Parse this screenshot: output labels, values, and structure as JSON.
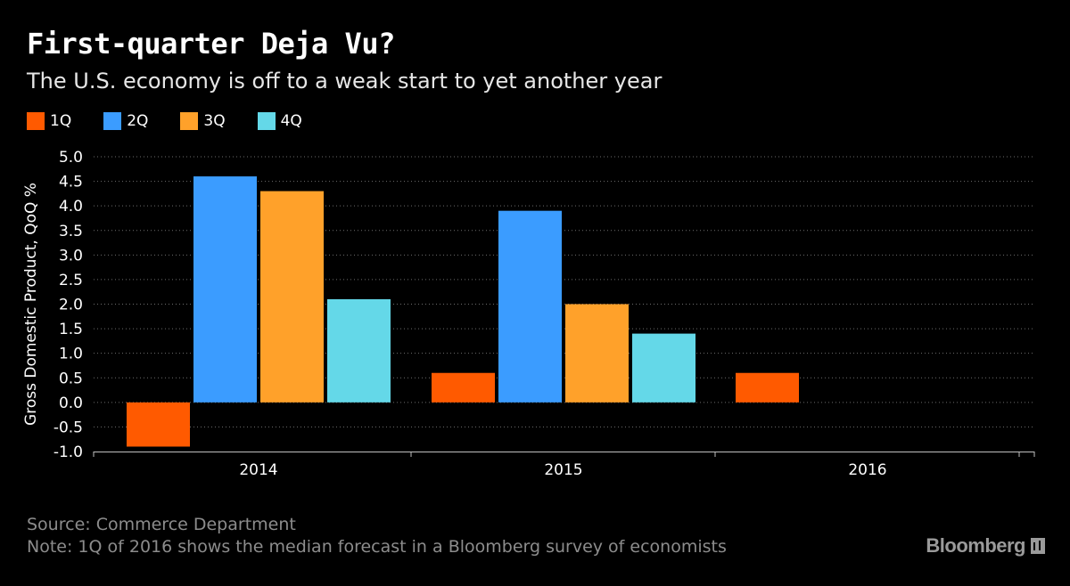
{
  "chart_data": {
    "type": "bar",
    "title": "First-quarter Deja Vu?",
    "subtitle": "The U.S. economy is off to a weak start to yet another year",
    "ylabel": "Gross Domestic Product, QoQ %",
    "xlabel": "",
    "categories": [
      "2014",
      "2015",
      "2016"
    ],
    "ylim": [
      -1.0,
      5.0
    ],
    "yticks": [
      "5.0",
      "4.5",
      "4.0",
      "3.5",
      "3.0",
      "2.5",
      "2.0",
      "1.5",
      "1.0",
      "0.5",
      "0.0",
      "-0.5",
      "-1.0"
    ],
    "grid": true,
    "legend_position": "top-left",
    "series": [
      {
        "name": "1Q",
        "color": "#ff5a00",
        "values": [
          -0.9,
          0.6,
          0.6
        ]
      },
      {
        "name": "2Q",
        "color": "#3b9cff",
        "values": [
          4.6,
          3.9,
          null
        ]
      },
      {
        "name": "3Q",
        "color": "#ffa12a",
        "values": [
          4.3,
          2.0,
          null
        ]
      },
      {
        "name": "4Q",
        "color": "#64d8e8",
        "values": [
          2.1,
          1.4,
          null
        ]
      }
    ]
  },
  "footer": {
    "source": "Source: Commerce Department",
    "note": "Note: 1Q of 2016 shows the median forecast in a Bloomberg survey of economists",
    "brand": "Bloomberg"
  }
}
